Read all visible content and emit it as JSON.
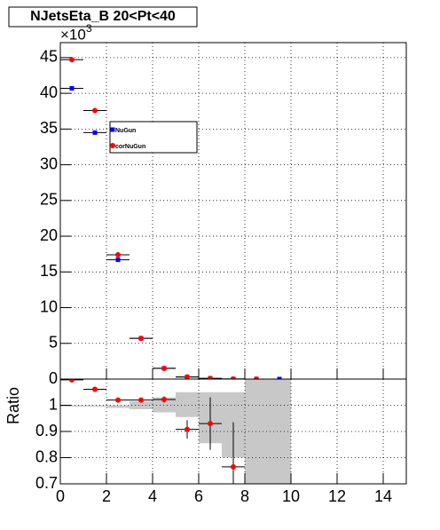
{
  "chart_data": [
    {
      "type": "points",
      "title": "NJetsEta_B 20<Pt<40",
      "y_multiplier_base": "×10",
      "y_multiplier_exp": "3",
      "x": [
        0.5,
        1.5,
        2.5,
        3.5,
        4.5,
        5.5,
        6.5,
        7.5,
        8.5,
        9.5
      ],
      "xerr": 0.5,
      "series": [
        {
          "name": "NuGun",
          "color": "#0000ff",
          "marker": "square",
          "values": [
            40.7,
            34.5,
            16.7,
            5.7,
            1.5,
            0.3,
            0.1,
            0.02,
            0.005,
            0.001
          ]
        },
        {
          "name": "corNuGun",
          "color": "#ff0000",
          "marker": "circle",
          "values": [
            44.7,
            37.6,
            17.4,
            5.7,
            1.5,
            0.3,
            0.1,
            0.02,
            0.005,
            null
          ]
        }
      ],
      "xlim": [
        0,
        15
      ],
      "ylim": [
        0,
        47.1
      ],
      "yticks": [
        0,
        5,
        10,
        15,
        20,
        25,
        30,
        35,
        40,
        45
      ],
      "grid": true
    },
    {
      "type": "ratio",
      "ylabel": "Ratio",
      "x": [
        0.5,
        1.5,
        2.5,
        3.5,
        4.5,
        5.5,
        6.5,
        7.5
      ],
      "xerr": 0.5,
      "values": [
        1.097,
        1.061,
        1.02,
        1.02,
        1.022,
        0.908,
        0.93,
        0.765
      ],
      "errors": [
        0.003,
        0.004,
        0.006,
        0.008,
        0.012,
        0.035,
        0.1,
        0.17
      ],
      "color": "#ff0000",
      "band_bins": [
        0,
        1,
        2,
        3,
        4,
        5,
        6,
        7,
        8,
        9,
        10
      ],
      "band_low": [
        0.995,
        0.995,
        0.99,
        0.985,
        0.973,
        0.955,
        0.855,
        0.8,
        0.7,
        0.7
      ],
      "band_high": [
        1.0,
        1.0,
        1.0,
        1.015,
        1.03,
        1.05,
        1.05,
        1.05,
        1.1,
        1.1
      ],
      "band_color": "#c8c8c8",
      "xlim": [
        0,
        15
      ],
      "ylim": [
        0.7,
        1.1
      ],
      "xticks": [
        0,
        2,
        4,
        6,
        8,
        10,
        12,
        14
      ],
      "yticks": [
        0.7,
        0.8,
        0.9,
        1
      ],
      "grid": true
    }
  ]
}
